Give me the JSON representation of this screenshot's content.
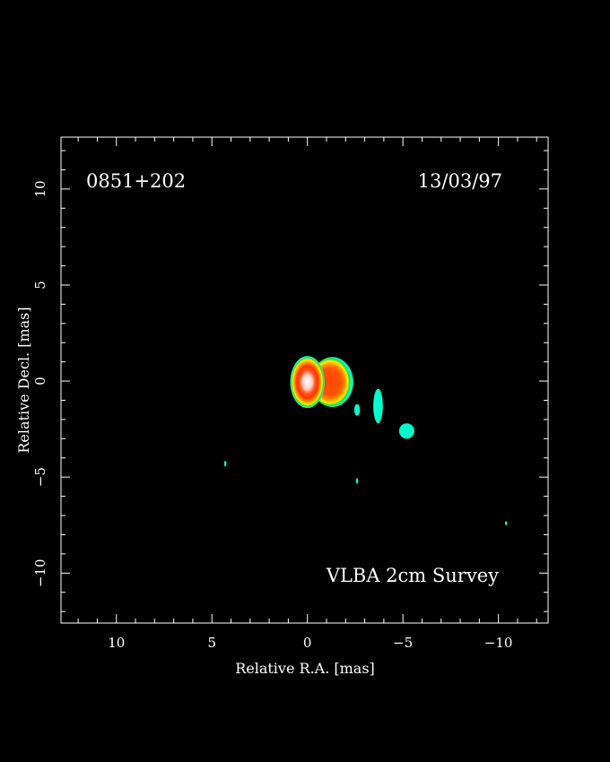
{
  "chart_data": {
    "type": "heatmap",
    "title": "",
    "source_name": "0851+202",
    "epoch": "13/03/97",
    "survey": "VLBA 2cm Survey",
    "xlabel": "Relative R.A. [mas]",
    "ylabel": "Relative Decl. [mas]",
    "xlim": [
      12.9,
      -12.6
    ],
    "ylim": [
      -12.6,
      12.7
    ],
    "x_ticks": [
      10,
      5,
      0,
      -5,
      -10
    ],
    "x_tick_labels": [
      "10",
      "5",
      "0",
      "−5",
      "−10"
    ],
    "y_ticks": [
      10,
      5,
      0,
      -5,
      -10
    ],
    "y_tick_labels": [
      "10",
      "5",
      "0",
      "−5",
      "−10"
    ],
    "minor_tick_step": 1,
    "grid": false,
    "background": "#000000",
    "colormap": [
      "#00ffcc",
      "#00cc66",
      "#ffee00",
      "#ff9900",
      "#ff4400",
      "#ff2200",
      "#ffb0a0",
      "#ffffff"
    ],
    "components": [
      {
        "name": "core",
        "x": 0.0,
        "y": -0.05,
        "rx": 0.9,
        "ry": 1.35,
        "level": 7
      },
      {
        "name": "inner jet",
        "x": -1.3,
        "y": -0.05,
        "rx": 1.1,
        "ry": 1.3,
        "level": 5
      },
      {
        "name": "jet knot 1",
        "x": -2.6,
        "y": -1.5,
        "rx": 0.15,
        "ry": 0.3,
        "level": 0
      },
      {
        "name": "jet knot 2",
        "x": -3.7,
        "y": -1.3,
        "rx": 0.25,
        "ry": 0.9,
        "level": 0
      },
      {
        "name": "jet knot 3",
        "x": -5.2,
        "y": -2.6,
        "rx": 0.4,
        "ry": 0.4,
        "level": 0
      },
      {
        "name": "noise 1",
        "x": 4.3,
        "y": -4.3,
        "rx": 0.06,
        "ry": 0.15,
        "level": 0
      },
      {
        "name": "noise 2",
        "x": -2.6,
        "y": -5.2,
        "rx": 0.06,
        "ry": 0.15,
        "level": 0
      },
      {
        "name": "noise 3",
        "x": -10.4,
        "y": -7.4,
        "rx": 0.05,
        "ry": 0.1,
        "level": 0
      }
    ]
  }
}
